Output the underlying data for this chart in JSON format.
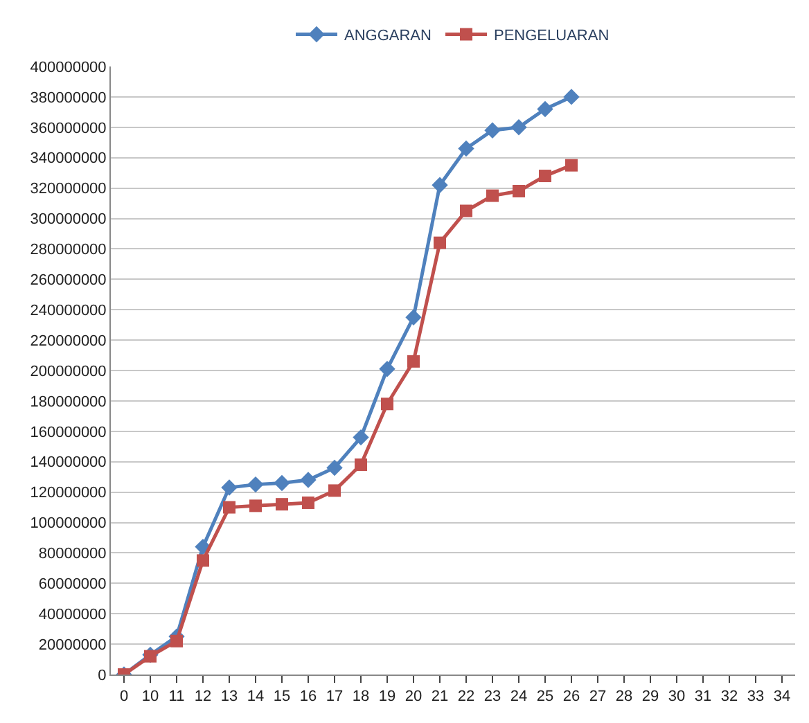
{
  "chart_data": {
    "type": "line",
    "categories": [
      "0",
      "10",
      "11",
      "12",
      "13",
      "14",
      "15",
      "16",
      "17",
      "18",
      "19",
      "20",
      "21",
      "22",
      "23",
      "24",
      "25",
      "26",
      "27",
      "28",
      "29",
      "30",
      "31",
      "32",
      "33",
      "34"
    ],
    "series": [
      {
        "name": "ANGGARAN",
        "color": "#4f81bd",
        "marker": "diamond",
        "values": [
          0,
          13000000,
          25000000,
          84000000,
          123000000,
          125000000,
          126000000,
          128000000,
          136000000,
          156000000,
          201000000,
          235000000,
          322000000,
          346000000,
          358000000,
          360000000,
          372000000,
          380000000,
          null,
          null,
          null,
          null,
          null,
          null,
          null,
          null
        ]
      },
      {
        "name": "PENGELUARAN",
        "color": "#c0504d",
        "marker": "square",
        "values": [
          0,
          12000000,
          22000000,
          75000000,
          110000000,
          111000000,
          112000000,
          113000000,
          121000000,
          138000000,
          178000000,
          206000000,
          284000000,
          305000000,
          315000000,
          318000000,
          328000000,
          335000000,
          null,
          null,
          null,
          null,
          null,
          null,
          null,
          null
        ]
      }
    ],
    "ylim": [
      0,
      400000000
    ],
    "yticks": [
      0,
      20000000,
      40000000,
      60000000,
      80000000,
      100000000,
      120000000,
      140000000,
      160000000,
      180000000,
      200000000,
      220000000,
      240000000,
      260000000,
      280000000,
      300000000,
      320000000,
      340000000,
      360000000,
      380000000,
      400000000
    ],
    "grid": "y",
    "legend": "top",
    "line_style": "solid"
  }
}
